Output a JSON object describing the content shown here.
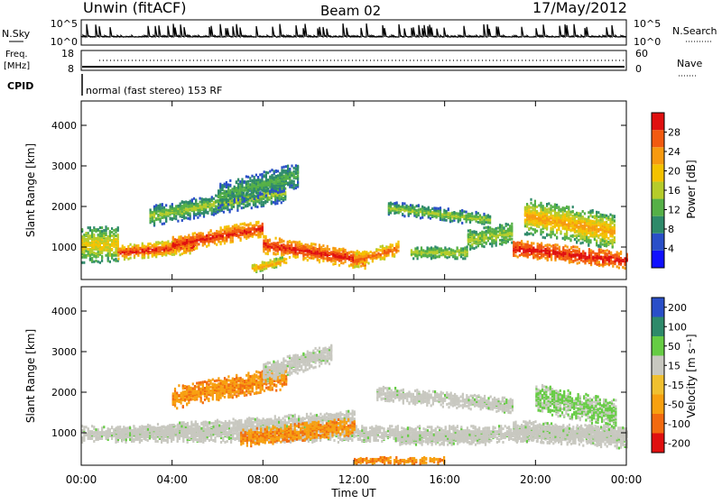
{
  "header": {
    "station": "Unwin (fitACF)",
    "beam": "Beam 02",
    "date": "17/May/2012"
  },
  "top_panels": {
    "nsky_label": "N.Sky",
    "nsearch_label": "N.Search",
    "nsky_ticks": [
      "10^5",
      "10^0"
    ],
    "nsearch_ticks": [
      "10^5",
      "10^0"
    ],
    "freq_label_line1": "Freq.",
    "freq_label_line2": "[MHz]",
    "freq_ticks": [
      "18",
      "8"
    ],
    "nave_label": "Nave",
    "nave_ticks": [
      "60",
      "0"
    ],
    "cpid_label": "CPID",
    "cpid_text": "normal (fast stereo) 153 RF"
  },
  "colors": {
    "power_scale": [
      "#1010ff",
      "#2a4fc8",
      "#2e8a6a",
      "#55b047",
      "#b6cc2a",
      "#f4c200",
      "#f79a10",
      "#f25a10",
      "#e01010"
    ],
    "velocity_scale": [
      "#e01010",
      "#f26a10",
      "#f7a010",
      "#f0c030",
      "#c8c8c0",
      "#66cc44",
      "#2e8a6a",
      "#2a4fc8"
    ],
    "ground_scatter": "#c8c8c0"
  },
  "chart_data": [
    {
      "type": "heatmap",
      "name": "power",
      "ylabel": "Slant Range [km]",
      "xlabel": "Time UT",
      "x_ticks": [
        "00:00",
        "04:00",
        "08:00",
        "12:00",
        "16:00",
        "20:00",
        "00:00"
      ],
      "y_ticks": [
        "1000",
        "2000",
        "3000",
        "4000"
      ],
      "ylim": [
        200,
        4600
      ],
      "colorbar_label": "Power [dB]",
      "colorbar_ticks": [
        "4",
        "8",
        "12",
        "16",
        "20",
        "24",
        "28"
      ],
      "colorbar_range": [
        0,
        32
      ]
    },
    {
      "type": "heatmap",
      "name": "velocity",
      "ylabel": "Slant Range [km]",
      "xlabel": "Time UT",
      "x_ticks": [
        "00:00",
        "04:00",
        "08:00",
        "12:00",
        "16:00",
        "20:00",
        "00:00"
      ],
      "y_ticks": [
        "1000",
        "2000",
        "3000",
        "4000"
      ],
      "ylim": [
        200,
        4600
      ],
      "colorbar_label": "Velocity [m s⁻¹]",
      "colorbar_ticks": [
        "200",
        "100",
        "50",
        "15",
        "-15",
        "-50",
        "-100",
        "-200"
      ]
    }
  ],
  "x_axis_title": "Time UT"
}
